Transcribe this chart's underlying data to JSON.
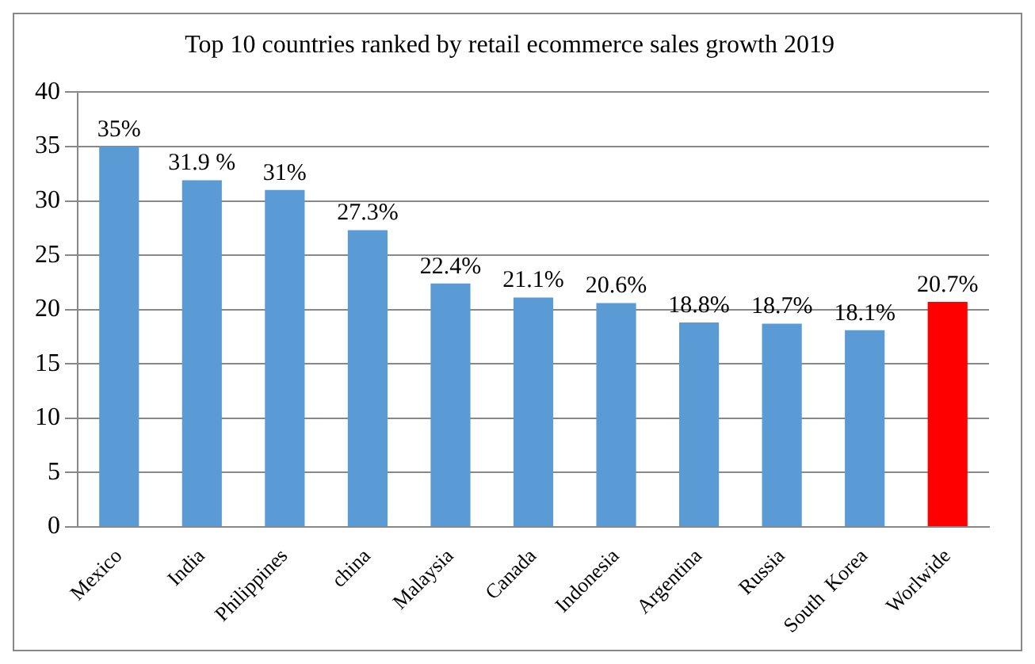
{
  "chart_data": {
    "type": "bar",
    "title": "Top 10 countries ranked by retail ecommerce sales growth 2019",
    "categories": [
      "Mexico",
      "India",
      "Philippines",
      "china",
      "Malaysia",
      "Canada",
      "Indonesia",
      "Argentina",
      "Russia",
      "South  Korea",
      "Worlwide"
    ],
    "values": [
      35,
      31.9,
      31,
      27.3,
      22.4,
      21.1,
      20.6,
      18.8,
      18.7,
      18.1,
      20.7
    ],
    "colors": [
      "#5b9bd5",
      "#5b9bd5",
      "#5b9bd5",
      "#5b9bd5",
      "#5b9bd5",
      "#5b9bd5",
      "#5b9bd5",
      "#5b9bd5",
      "#5b9bd5",
      "#5b9bd5",
      "#ff0000"
    ],
    "value_labels": [
      "35%",
      "31.9 %",
      "31%",
      "27.3%",
      "22.4%",
      "21.1%",
      "20.6%",
      "18.8%",
      "18.7%",
      "18.1%",
      "20.7%"
    ],
    "ylim": [
      0,
      40
    ],
    "yticks": [
      0,
      5,
      10,
      15,
      20,
      25,
      30,
      35,
      40
    ],
    "grid": "y",
    "legend": false
  }
}
